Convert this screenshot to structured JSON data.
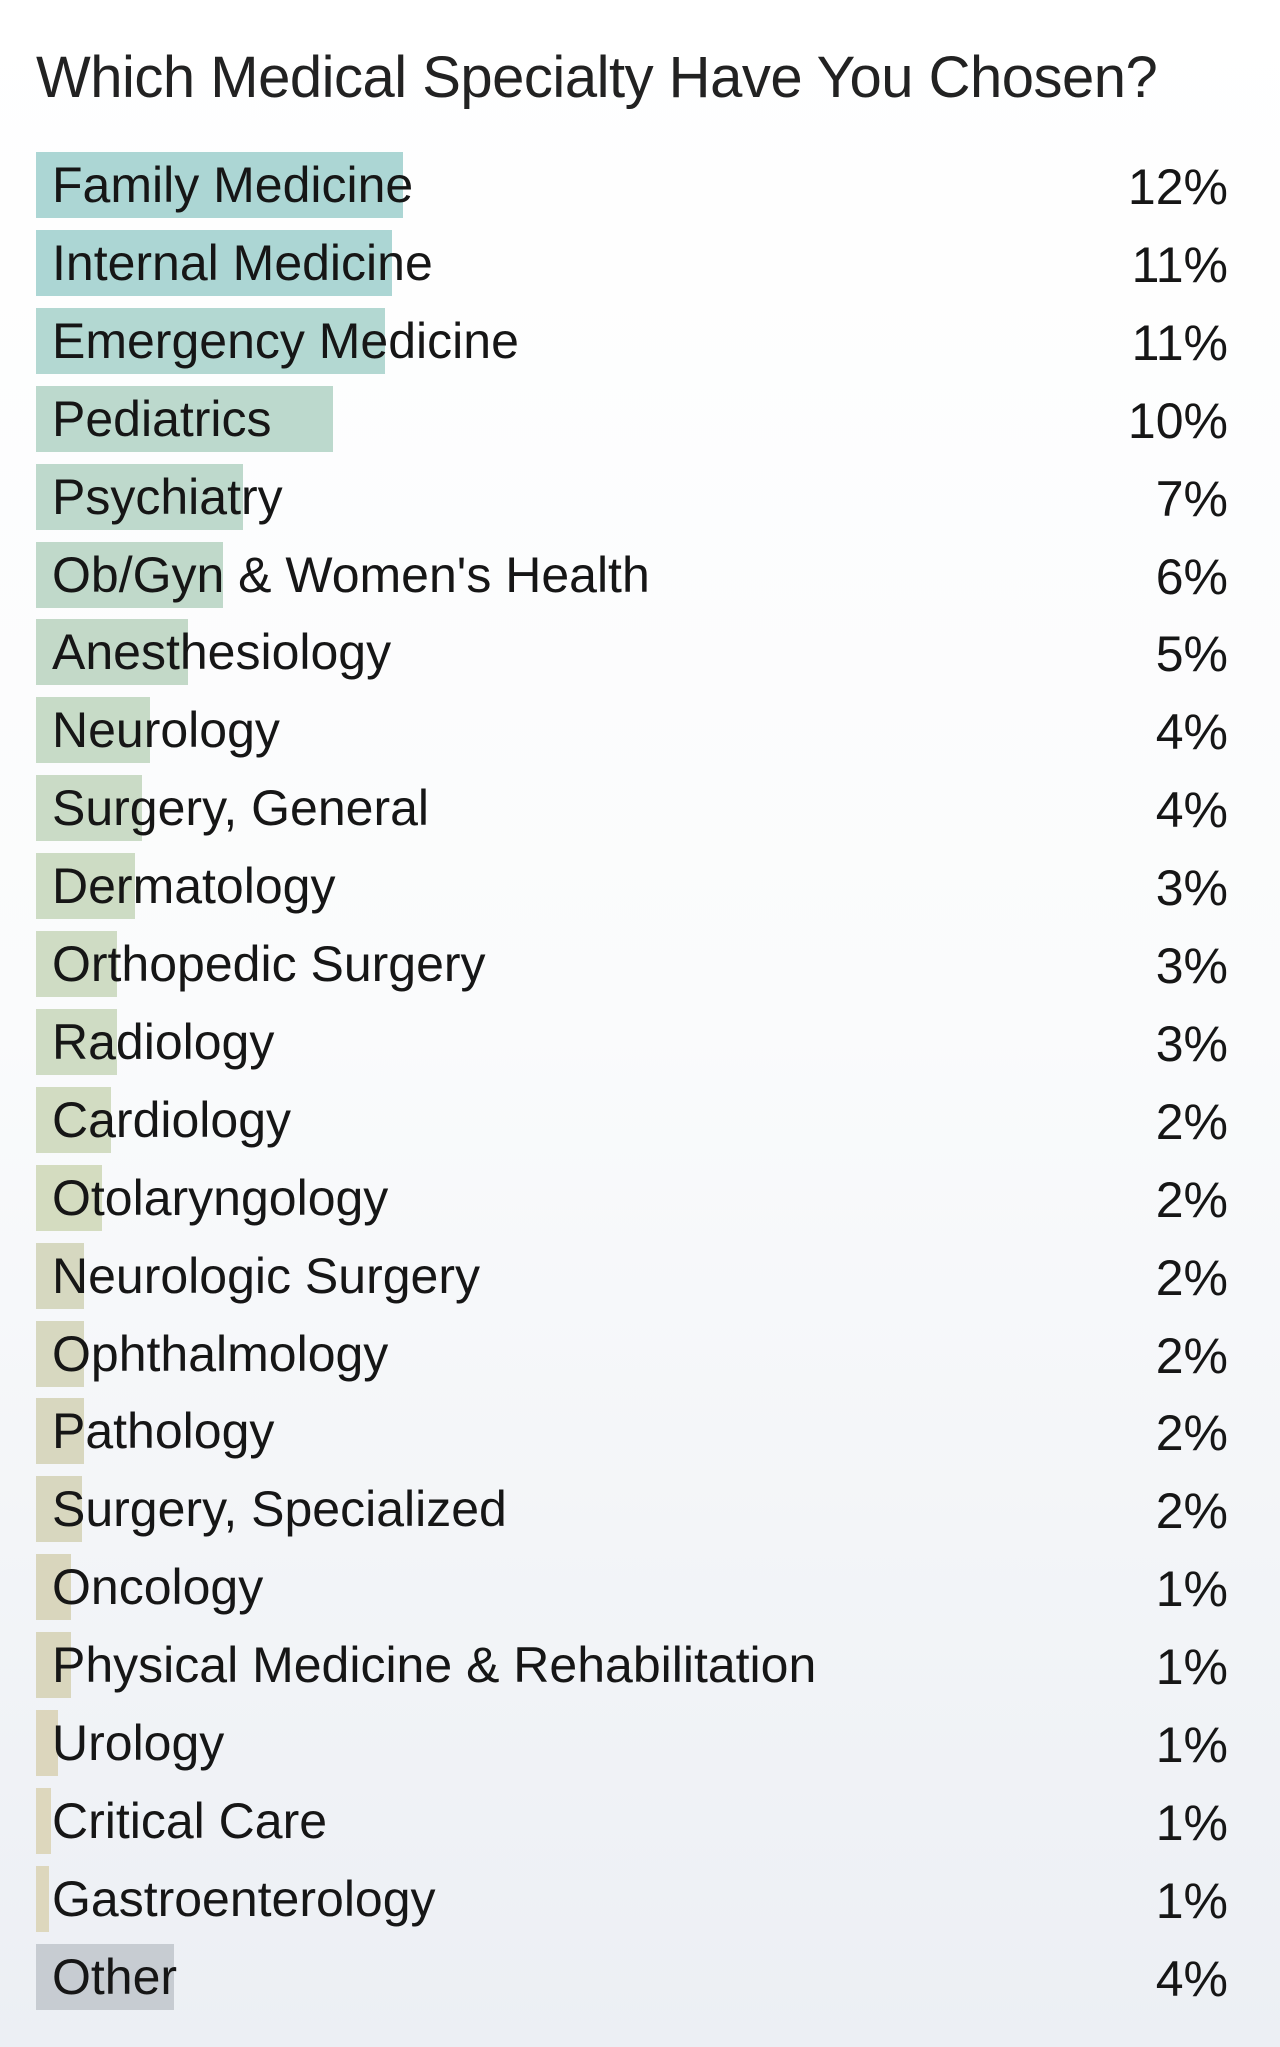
{
  "chart_data": {
    "type": "bar",
    "orientation": "horizontal",
    "title": "Which Medical Specialty Have You Chosen?",
    "xlabel": "",
    "ylabel": "",
    "grid": false,
    "legend": "none",
    "xlim": [
      0,
      12
    ],
    "categories": [
      "Family Medicine",
      "Internal Medicine",
      "Emergency Medicine",
      "Pediatrics",
      "Psychiatry",
      "Ob/Gyn & Women's Health",
      "Anesthesiology",
      "Neurology",
      "Surgery, General",
      "Dermatology",
      "Orthopedic Surgery",
      "Radiology",
      "Cardiology",
      "Otolaryngology",
      "Neurologic Surgery",
      "Ophthalmology",
      "Pathology",
      "Surgery, Specialized",
      "Oncology",
      "Physical Medicine & Rehabilitation",
      "Urology",
      "Critical Care",
      "Gastroenterology",
      "Other"
    ],
    "values": [
      12,
      11,
      11,
      10,
      7,
      6,
      5,
      4,
      4,
      3,
      3,
      3,
      2,
      2,
      2,
      2,
      2,
      2,
      1,
      1,
      1,
      1,
      1,
      4
    ],
    "value_labels": [
      "12%",
      "11%",
      "11%",
      "10%",
      "7%",
      "6%",
      "5%",
      "4%",
      "4%",
      "3%",
      "3%",
      "3%",
      "2%",
      "2%",
      "2%",
      "2%",
      "2%",
      "2%",
      "1%",
      "1%",
      "1%",
      "1%",
      "1%",
      "4%"
    ],
    "bar_fraction_of_max": [
      1.0,
      0.97,
      0.95,
      0.81,
      0.565,
      0.51,
      0.415,
      0.31,
      0.29,
      0.27,
      0.22,
      0.22,
      0.205,
      0.18,
      0.13,
      0.13,
      0.13,
      0.125,
      0.095,
      0.095,
      0.06,
      0.04,
      0.035,
      0.375
    ],
    "colors": [
      "#acd6d4",
      "#acd6d4",
      "#b3d8d2",
      "#bcd9cd",
      "#bed9cc",
      "#c0d9ca",
      "#c3d9c8",
      "#c7dbc7",
      "#cadbc6",
      "#cddcc4",
      "#cfdcc4",
      "#cfdcc4",
      "#d2dcc2",
      "#d4dcc0",
      "#d6d8c0",
      "#d7d8c0",
      "#d8d7bf",
      "#d8d7bf",
      "#d9d6bd",
      "#d9d6bd",
      "#dcd6bd",
      "#ddd7bd",
      "#ddd7bd",
      "#c7ccd2"
    ]
  }
}
